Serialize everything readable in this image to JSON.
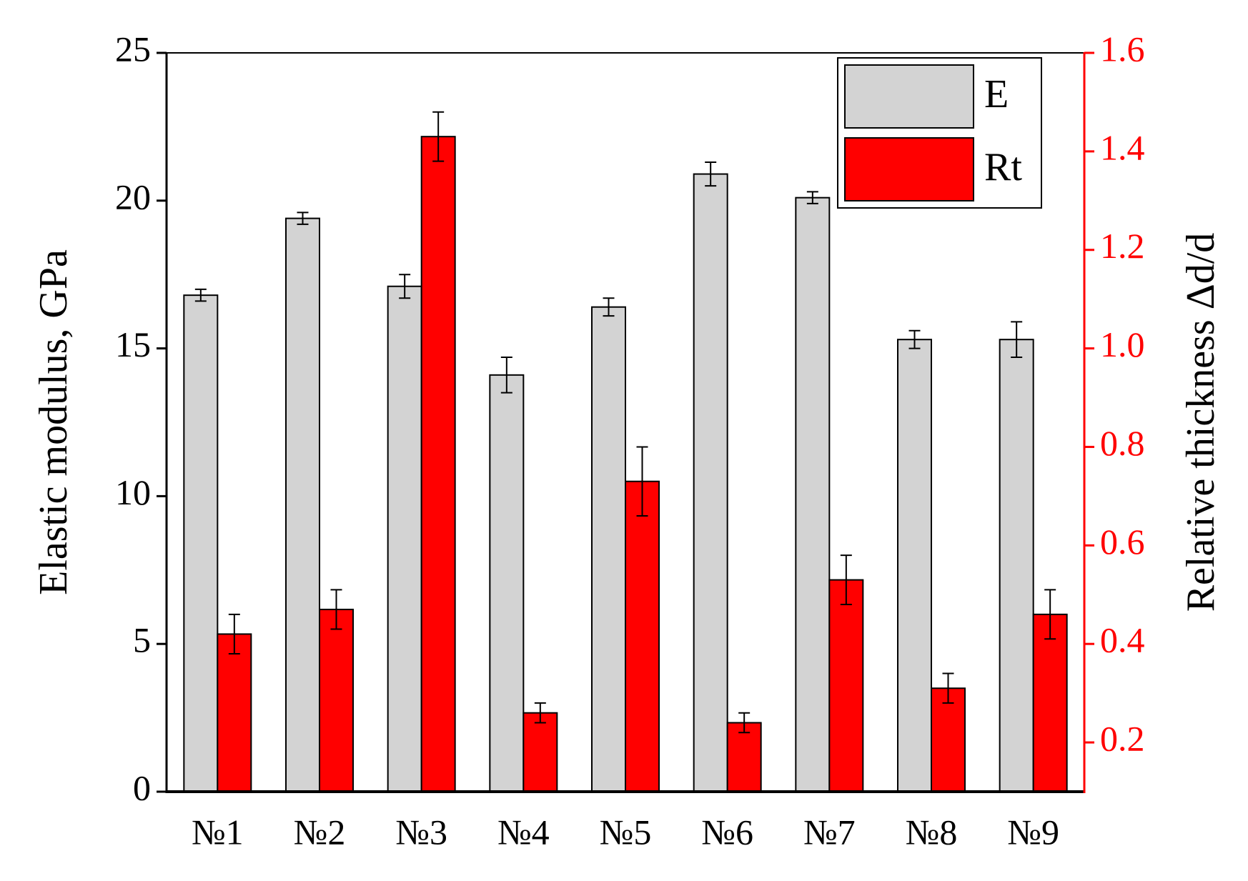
{
  "chart_data": {
    "type": "bar",
    "y_label": "Elastic modulus, GPa",
    "y2_label": "Relative thickness Δd/d",
    "categories": [
      "№1",
      "№2",
      "№3",
      "№4",
      "№5",
      "№6",
      "№7",
      "№8",
      "№9"
    ],
    "series": [
      {
        "name": "E",
        "color": "#d3d3d3",
        "axis": "y",
        "values": [
          16.8,
          19.4,
          17.1,
          14.1,
          16.4,
          20.9,
          20.1,
          15.3,
          15.3
        ],
        "errors": [
          0.2,
          0.2,
          0.4,
          0.6,
          0.3,
          0.4,
          0.2,
          0.3,
          0.6
        ]
      },
      {
        "name": "Rt",
        "color": "#ff0000",
        "axis": "y2",
        "values": [
          0.42,
          0.47,
          1.43,
          0.26,
          0.73,
          0.24,
          0.53,
          0.31,
          0.46
        ],
        "errors": [
          0.04,
          0.04,
          0.05,
          0.02,
          0.07,
          0.02,
          0.05,
          0.03,
          0.05
        ]
      }
    ],
    "ylim": [
      0,
      25
    ],
    "yticks": [
      0,
      5,
      10,
      15,
      20,
      25
    ],
    "y2lim": [
      0.1,
      1.6
    ],
    "y2ticks": [
      0.2,
      0.4,
      0.6,
      0.8,
      {
        "value": 1,
        "label": "1.0"
      },
      1.2,
      1.4,
      1.6
    ],
    "y2color": "#ff0000",
    "legend": "top-right"
  }
}
